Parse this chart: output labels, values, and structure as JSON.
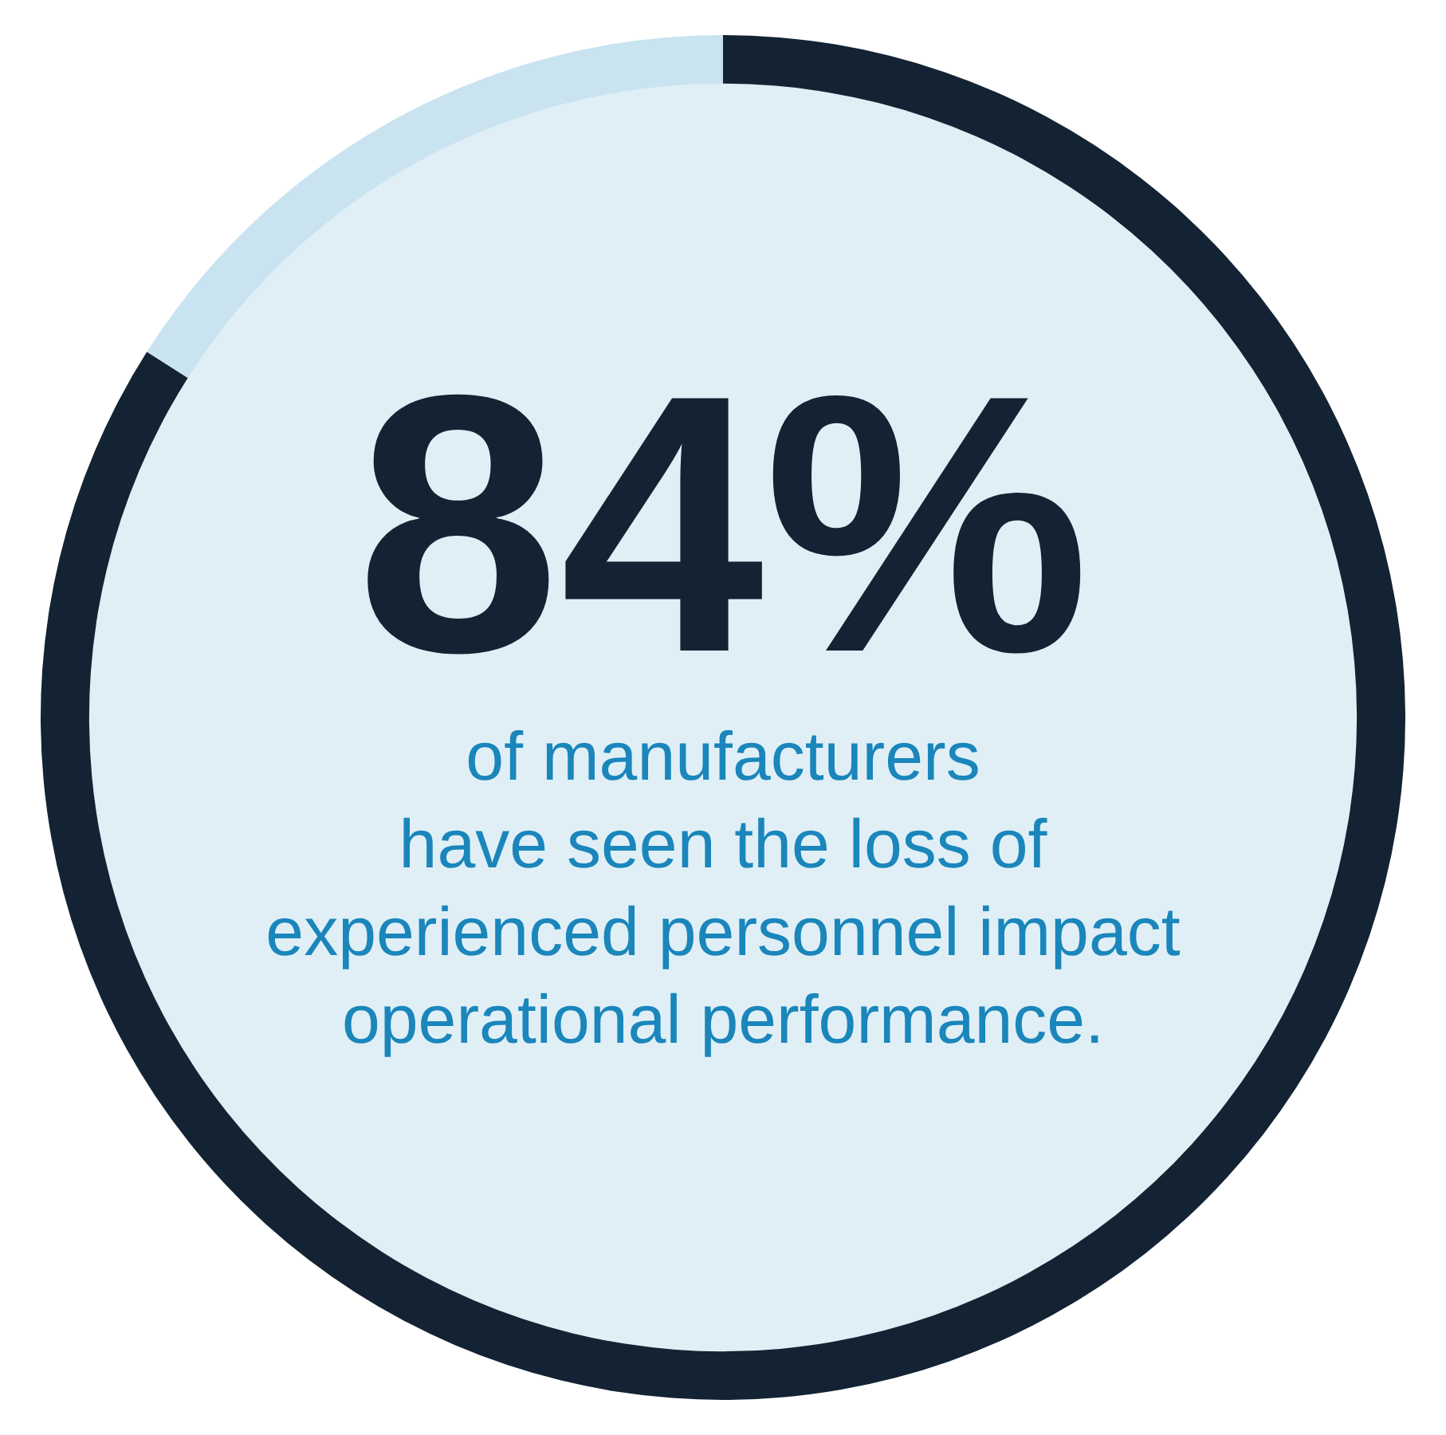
{
  "chart_data": {
    "type": "donut",
    "categories": [
      null,
      null
    ],
    "values": [
      84,
      16
    ],
    "colors": [
      "#132333",
      "#c9e3f0"
    ],
    "value_labels": [
      "84%",
      null
    ],
    "annotations": [
      "of manufacturers",
      "have seen the loss of",
      "experienced personnel impact",
      "operational performance."
    ]
  }
}
